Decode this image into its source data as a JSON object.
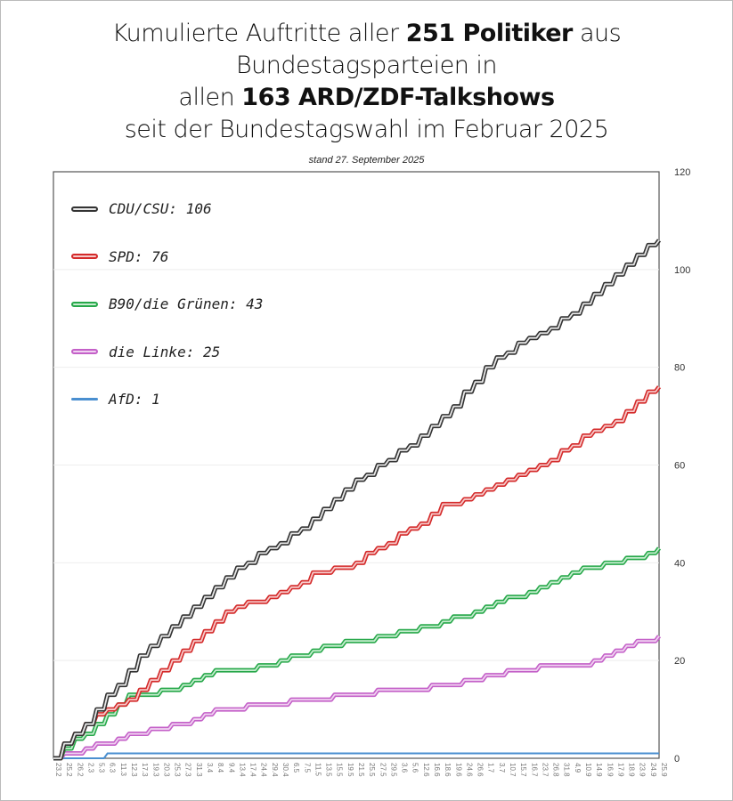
{
  "title": {
    "line1_pre": "Kumulierte Auftritte aller ",
    "line1_bold": "251 Politiker",
    "line1_post": " aus",
    "line2": "Bundestagsparteien in",
    "line3_pre": "allen ",
    "line3_bold": "163 ARD/ZDF-Talkshows",
    "line4": "seit der Bundestagswahl im Februar 2025"
  },
  "subtitle": "stand 27. September 2025",
  "chart_data": {
    "type": "line",
    "title": "Kumulierte Auftritte aller 251 Politiker aus Bundestagsparteien in allen 163 ARD/ZDF-Talkshows seit der Bundestagswahl im Februar 2025",
    "xlabel": "",
    "ylabel": "",
    "ylim": [
      0,
      120
    ],
    "yticks": [
      "0",
      "20",
      "40",
      "60",
      "80",
      "100",
      "120"
    ],
    "grid": true,
    "legend_position": "top-left",
    "categories": [
      "23.2",
      "25.2",
      "26.2",
      "2.3",
      "5.3",
      "6.3",
      "11.3",
      "12.3",
      "17.3",
      "19.3",
      "20.3",
      "25.3",
      "27.3",
      "31.3",
      "3.4",
      "8.4",
      "9.4",
      "13.4",
      "17.4",
      "24.4",
      "29.4",
      "30.4",
      "6.5",
      "7.5",
      "11.5",
      "13.5",
      "15.5",
      "19.5",
      "21.5",
      "25.5",
      "27.5",
      "29.5",
      "3.6",
      "5.6",
      "12.6",
      "16.6",
      "18.6",
      "19.6",
      "24.6",
      "26.6",
      "1.7",
      "3.7",
      "10.7",
      "15.7",
      "16.7",
      "23.7",
      "26.8",
      "31.8",
      "4.9",
      "10.9",
      "14.9",
      "16.9",
      "17.9",
      "18.9",
      "23.9",
      "24.9",
      "25.9"
    ],
    "series": [
      {
        "name": "CDU/CSU",
        "legend": "CDU/CSU: 106",
        "color": "#333333",
        "inner": "#e8e8e8",
        "values": [
          0,
          3,
          5,
          7,
          10,
          13,
          15,
          18,
          21,
          23,
          25,
          27,
          29,
          31,
          33,
          35,
          37,
          39,
          40,
          42,
          43,
          44,
          46,
          47,
          49,
          51,
          53,
          55,
          57,
          58,
          60,
          61,
          63,
          64,
          66,
          68,
          70,
          72,
          75,
          77,
          80,
          82,
          83,
          85,
          86,
          87,
          88,
          90,
          91,
          93,
          95,
          97,
          99,
          101,
          103,
          105,
          106
        ]
      },
      {
        "name": "SPD",
        "legend": "SPD: 76",
        "color": "#d42a2a",
        "inner": "#f6c9c9",
        "values": [
          0,
          3,
          5,
          7,
          9,
          10,
          11,
          12,
          14,
          16,
          18,
          20,
          22,
          24,
          26,
          28,
          30,
          31,
          32,
          32,
          33,
          34,
          35,
          36,
          38,
          38,
          39,
          39,
          40,
          42,
          43,
          44,
          46,
          47,
          48,
          50,
          52,
          52,
          53,
          54,
          55,
          56,
          57,
          58,
          59,
          60,
          61,
          63,
          64,
          66,
          67,
          68,
          69,
          71,
          73,
          75,
          76
        ]
      },
      {
        "name": "B90/die Grünen",
        "legend": "B90/die Grünen: 43",
        "color": "#27a84a",
        "inner": "#c6edcf",
        "values": [
          0,
          2,
          4,
          5,
          7,
          9,
          11,
          13,
          13,
          13,
          14,
          14,
          15,
          16,
          17,
          18,
          18,
          18,
          18,
          19,
          19,
          20,
          21,
          21,
          22,
          23,
          23,
          24,
          24,
          24,
          25,
          25,
          26,
          26,
          27,
          27,
          28,
          29,
          29,
          30,
          31,
          32,
          33,
          33,
          34,
          35,
          36,
          37,
          38,
          39,
          39,
          40,
          40,
          41,
          41,
          42,
          43
        ]
      },
      {
        "name": "die Linke",
        "legend": "die Linke: 25",
        "color": "#c460c8",
        "inner": "#f0d2f1",
        "values": [
          0,
          1,
          1,
          2,
          3,
          3,
          4,
          5,
          5,
          6,
          6,
          7,
          7,
          8,
          9,
          10,
          10,
          10,
          11,
          11,
          11,
          11,
          12,
          12,
          12,
          12,
          13,
          13,
          13,
          13,
          14,
          14,
          14,
          14,
          14,
          15,
          15,
          15,
          16,
          16,
          17,
          17,
          18,
          18,
          18,
          19,
          19,
          19,
          19,
          19,
          20,
          21,
          22,
          23,
          24,
          24,
          25
        ]
      },
      {
        "name": "AfD",
        "legend": "AfD: 1",
        "color": "#4a8fd0",
        "inner": "",
        "values": [
          0,
          0,
          0,
          0,
          0,
          1,
          1,
          1,
          1,
          1,
          1,
          1,
          1,
          1,
          1,
          1,
          1,
          1,
          1,
          1,
          1,
          1,
          1,
          1,
          1,
          1,
          1,
          1,
          1,
          1,
          1,
          1,
          1,
          1,
          1,
          1,
          1,
          1,
          1,
          1,
          1,
          1,
          1,
          1,
          1,
          1,
          1,
          1,
          1,
          1,
          1,
          1,
          1,
          1,
          1,
          1,
          1
        ]
      }
    ]
  }
}
